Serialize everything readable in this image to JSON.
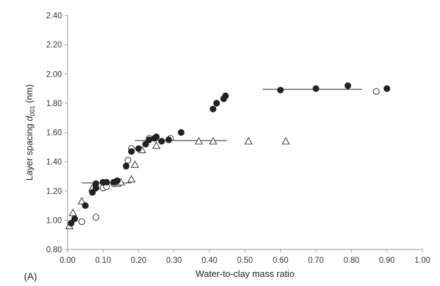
{
  "chart_data": {
    "type": "scatter",
    "panel_label": "(A)",
    "xlabel": "Water-to-clay mass ratio",
    "ylabel": {
      "prefix": "Layer spacing ",
      "symbol": "d",
      "subscript": "001",
      "suffix": " (nm)"
    },
    "xlim": [
      0.0,
      1.0
    ],
    "ylim": [
      0.8,
      2.4
    ],
    "x_ticks": [
      "0.00",
      "0.10",
      "0.20",
      "0.30",
      "0.40",
      "0.50",
      "0.60",
      "0.70",
      "0.80",
      "0.90",
      "1.00"
    ],
    "y_ticks": [
      "0.80",
      "1.00",
      "1.20",
      "1.40",
      "1.60",
      "1.80",
      "2.00",
      "2.20",
      "2.40"
    ],
    "grid": false,
    "legend": false,
    "series": [
      {
        "marker": "filled-circle",
        "color": "#222222",
        "points": [
          [
            0.01,
            0.98
          ],
          [
            0.02,
            1.01
          ],
          [
            0.05,
            1.1
          ],
          [
            0.07,
            1.19
          ],
          [
            0.08,
            1.22
          ],
          [
            0.08,
            1.25
          ],
          [
            0.1,
            1.26
          ],
          [
            0.11,
            1.26
          ],
          [
            0.13,
            1.26
          ],
          [
            0.14,
            1.27
          ],
          [
            0.165,
            1.37
          ],
          [
            0.18,
            1.47
          ],
          [
            0.2,
            1.49
          ],
          [
            0.22,
            1.52
          ],
          [
            0.23,
            1.55
          ],
          [
            0.245,
            1.56
          ],
          [
            0.25,
            1.57
          ],
          [
            0.265,
            1.54
          ],
          [
            0.285,
            1.55
          ],
          [
            0.32,
            1.6
          ],
          [
            0.41,
            1.76
          ],
          [
            0.42,
            1.8
          ],
          [
            0.44,
            1.83
          ],
          [
            0.445,
            1.85
          ],
          [
            0.6,
            1.89
          ],
          [
            0.7,
            1.9
          ],
          [
            0.79,
            1.92
          ],
          [
            0.9,
            1.9
          ]
        ]
      },
      {
        "marker": "open-circle",
        "color": "#444444",
        "points": [
          [
            0.04,
            0.99
          ],
          [
            0.08,
            1.02
          ],
          [
            0.1,
            1.22
          ],
          [
            0.11,
            1.23
          ],
          [
            0.13,
            1.25
          ],
          [
            0.17,
            1.41
          ],
          [
            0.18,
            1.49
          ],
          [
            0.23,
            1.56
          ],
          [
            0.29,
            1.56
          ],
          [
            0.87,
            1.88
          ]
        ]
      },
      {
        "marker": "open-triangle",
        "color": "#444444",
        "points": [
          [
            0.005,
            0.96
          ],
          [
            0.015,
            1.05
          ],
          [
            0.04,
            1.13
          ],
          [
            0.07,
            1.22
          ],
          [
            0.14,
            1.25
          ],
          [
            0.15,
            1.26
          ],
          [
            0.18,
            1.28
          ],
          [
            0.19,
            1.38
          ],
          [
            0.21,
            1.48
          ],
          [
            0.25,
            1.51
          ],
          [
            0.37,
            1.54
          ],
          [
            0.41,
            1.54
          ],
          [
            0.51,
            1.54
          ],
          [
            0.615,
            1.54
          ]
        ]
      }
    ],
    "reference_lines": [
      {
        "x": [
          0.04,
          0.18
        ],
        "y": 1.255
      },
      {
        "x": [
          0.19,
          0.45
        ],
        "y": 1.545
      },
      {
        "x": [
          0.55,
          0.83
        ],
        "y": 1.895
      }
    ]
  }
}
